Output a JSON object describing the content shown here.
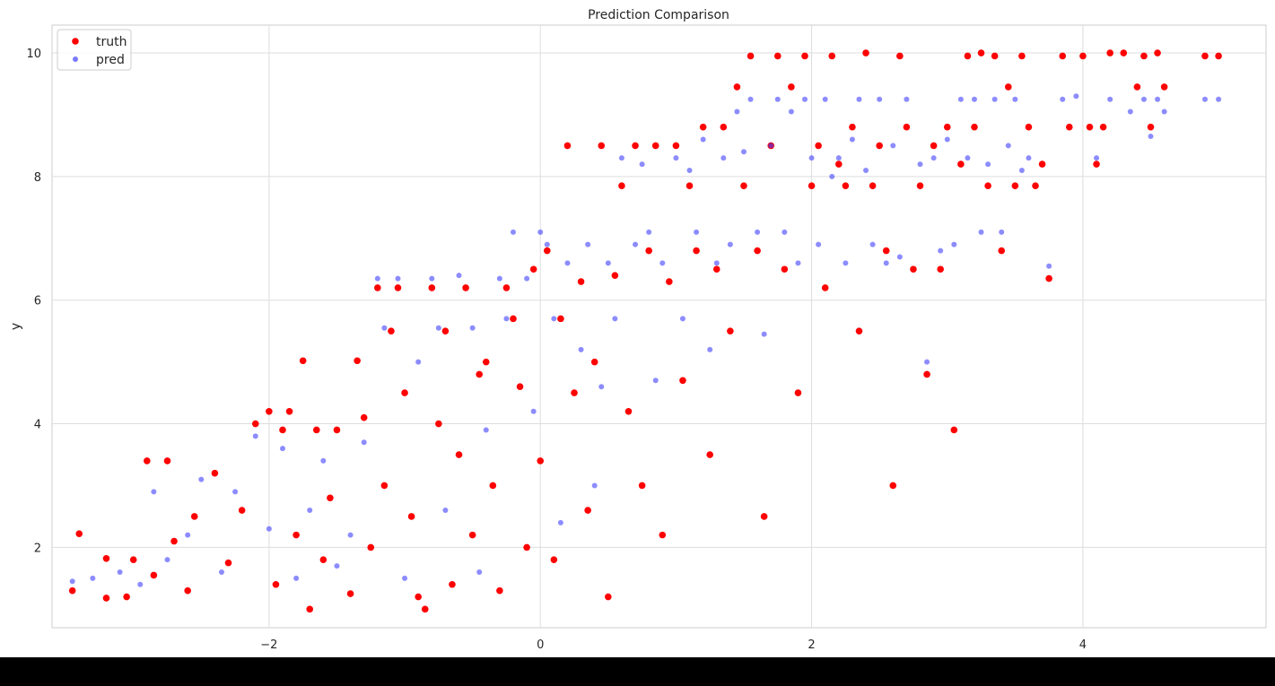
{
  "chart_data": {
    "type": "scatter",
    "title": "Prediction Comparison",
    "xlabel": "",
    "ylabel": "y",
    "xlim": [
      -3.6,
      5.35
    ],
    "ylim": [
      0.7,
      10.45
    ],
    "xticks": [
      -2,
      0,
      2,
      4
    ],
    "xtick_labels": [
      "−2",
      "0",
      "2",
      "4"
    ],
    "yticks": [
      2,
      4,
      6,
      8,
      10
    ],
    "ytick_labels": [
      "2",
      "4",
      "6",
      "8",
      "10"
    ],
    "grid": true,
    "legend_position": "top-left",
    "series": [
      {
        "name": "truth",
        "color": "#ff0000",
        "points": [
          [
            -3.45,
            1.3
          ],
          [
            -3.4,
            2.22
          ],
          [
            -3.2,
            1.82
          ],
          [
            -3.2,
            1.18
          ],
          [
            -3.05,
            1.2
          ],
          [
            -3.0,
            1.8
          ],
          [
            -2.9,
            3.4
          ],
          [
            -2.85,
            1.55
          ],
          [
            -2.75,
            3.4
          ],
          [
            -2.7,
            2.1
          ],
          [
            -2.6,
            1.3
          ],
          [
            -2.55,
            2.5
          ],
          [
            -2.4,
            3.2
          ],
          [
            -2.3,
            1.75
          ],
          [
            -2.2,
            2.6
          ],
          [
            -2.1,
            4.0
          ],
          [
            -2.0,
            4.2
          ],
          [
            -1.95,
            1.4
          ],
          [
            -1.9,
            3.9
          ],
          [
            -1.85,
            4.2
          ],
          [
            -1.8,
            2.2
          ],
          [
            -1.75,
            5.02
          ],
          [
            -1.7,
            1.0
          ],
          [
            -1.65,
            3.9
          ],
          [
            -1.6,
            1.8
          ],
          [
            -1.55,
            2.8
          ],
          [
            -1.5,
            3.9
          ],
          [
            -1.4,
            1.25
          ],
          [
            -1.35,
            5.02
          ],
          [
            -1.3,
            4.1
          ],
          [
            -1.25,
            2.0
          ],
          [
            -1.2,
            6.2
          ],
          [
            -1.15,
            3.0
          ],
          [
            -1.1,
            5.5
          ],
          [
            -1.05,
            6.2
          ],
          [
            -1.0,
            4.5
          ],
          [
            -0.95,
            2.5
          ],
          [
            -0.9,
            1.2
          ],
          [
            -0.85,
            1.0
          ],
          [
            -0.8,
            6.2
          ],
          [
            -0.75,
            4.0
          ],
          [
            -0.7,
            5.5
          ],
          [
            -0.65,
            1.4
          ],
          [
            -0.6,
            3.5
          ],
          [
            -0.55,
            6.2
          ],
          [
            -0.5,
            2.2
          ],
          [
            -0.45,
            4.8
          ],
          [
            -0.4,
            5.0
          ],
          [
            -0.35,
            3.0
          ],
          [
            -0.3,
            1.3
          ],
          [
            -0.25,
            6.2
          ],
          [
            -0.2,
            5.7
          ],
          [
            -0.15,
            4.6
          ],
          [
            -0.1,
            2.0
          ],
          [
            -0.05,
            6.5
          ],
          [
            0.0,
            3.4
          ],
          [
            0.05,
            6.8
          ],
          [
            0.1,
            1.8
          ],
          [
            0.15,
            5.7
          ],
          [
            0.2,
            8.5
          ],
          [
            0.25,
            4.5
          ],
          [
            0.3,
            6.3
          ],
          [
            0.35,
            2.6
          ],
          [
            0.4,
            5.0
          ],
          [
            0.45,
            8.5
          ],
          [
            0.5,
            1.2
          ],
          [
            0.55,
            6.4
          ],
          [
            0.6,
            7.85
          ],
          [
            0.65,
            4.2
          ],
          [
            0.7,
            8.5
          ],
          [
            0.75,
            3.0
          ],
          [
            0.8,
            6.8
          ],
          [
            0.85,
            8.5
          ],
          [
            0.9,
            2.2
          ],
          [
            0.95,
            6.3
          ],
          [
            1.0,
            8.5
          ],
          [
            1.05,
            4.7
          ],
          [
            1.1,
            7.85
          ],
          [
            1.15,
            6.8
          ],
          [
            1.2,
            8.8
          ],
          [
            1.25,
            3.5
          ],
          [
            1.3,
            6.5
          ],
          [
            1.35,
            8.8
          ],
          [
            1.4,
            5.5
          ],
          [
            1.45,
            9.45
          ],
          [
            1.5,
            7.85
          ],
          [
            1.55,
            9.95
          ],
          [
            1.6,
            6.8
          ],
          [
            1.65,
            2.5
          ],
          [
            1.7,
            8.5
          ],
          [
            1.75,
            9.95
          ],
          [
            1.8,
            6.5
          ],
          [
            1.85,
            9.45
          ],
          [
            1.9,
            4.5
          ],
          [
            1.95,
            9.95
          ],
          [
            2.0,
            7.85
          ],
          [
            2.05,
            8.5
          ],
          [
            2.1,
            6.2
          ],
          [
            2.15,
            9.95
          ],
          [
            2.2,
            8.2
          ],
          [
            2.25,
            7.85
          ],
          [
            2.3,
            8.8
          ],
          [
            2.35,
            5.5
          ],
          [
            2.4,
            10.0
          ],
          [
            2.45,
            7.85
          ],
          [
            2.5,
            8.5
          ],
          [
            2.55,
            6.8
          ],
          [
            2.6,
            3.0
          ],
          [
            2.65,
            9.95
          ],
          [
            2.7,
            8.8
          ],
          [
            2.75,
            6.5
          ],
          [
            2.8,
            7.85
          ],
          [
            2.85,
            4.8
          ],
          [
            2.9,
            8.5
          ],
          [
            2.95,
            6.5
          ],
          [
            3.0,
            8.8
          ],
          [
            3.05,
            3.9
          ],
          [
            3.1,
            8.2
          ],
          [
            3.15,
            9.95
          ],
          [
            3.2,
            8.8
          ],
          [
            3.25,
            10.0
          ],
          [
            3.3,
            7.85
          ],
          [
            3.35,
            9.95
          ],
          [
            3.4,
            6.8
          ],
          [
            3.45,
            9.45
          ],
          [
            3.5,
            7.85
          ],
          [
            3.55,
            9.95
          ],
          [
            3.6,
            8.8
          ],
          [
            3.65,
            7.85
          ],
          [
            3.7,
            8.2
          ],
          [
            3.75,
            6.35
          ],
          [
            3.85,
            9.95
          ],
          [
            3.9,
            8.8
          ],
          [
            4.0,
            9.95
          ],
          [
            4.05,
            8.8
          ],
          [
            4.1,
            8.2
          ],
          [
            4.15,
            8.8
          ],
          [
            4.2,
            10.0
          ],
          [
            4.3,
            10.0
          ],
          [
            4.4,
            9.45
          ],
          [
            4.45,
            9.95
          ],
          [
            4.5,
            8.8
          ],
          [
            4.55,
            10.0
          ],
          [
            4.6,
            9.45
          ],
          [
            4.9,
            9.95
          ],
          [
            5.0,
            9.95
          ]
        ]
      },
      {
        "name": "pred",
        "color": "#4040ff",
        "points": [
          [
            -3.45,
            1.45
          ],
          [
            -3.3,
            1.5
          ],
          [
            -3.1,
            1.6
          ],
          [
            -2.95,
            1.4
          ],
          [
            -2.85,
            2.9
          ],
          [
            -2.75,
            1.8
          ],
          [
            -2.6,
            2.2
          ],
          [
            -2.5,
            3.1
          ],
          [
            -2.35,
            1.6
          ],
          [
            -2.25,
            2.9
          ],
          [
            -2.1,
            3.8
          ],
          [
            -2.0,
            2.3
          ],
          [
            -1.9,
            3.6
          ],
          [
            -1.8,
            1.5
          ],
          [
            -1.7,
            2.6
          ],
          [
            -1.6,
            3.4
          ],
          [
            -1.5,
            1.7
          ],
          [
            -1.4,
            2.2
          ],
          [
            -1.3,
            3.7
          ],
          [
            -1.2,
            6.35
          ],
          [
            -1.15,
            5.55
          ],
          [
            -1.05,
            6.35
          ],
          [
            -1.0,
            1.5
          ],
          [
            -0.9,
            5.0
          ],
          [
            -0.8,
            6.35
          ],
          [
            -0.75,
            5.55
          ],
          [
            -0.7,
            2.6
          ],
          [
            -0.6,
            6.4
          ],
          [
            -0.5,
            5.55
          ],
          [
            -0.45,
            1.6
          ],
          [
            -0.4,
            3.9
          ],
          [
            -0.3,
            6.35
          ],
          [
            -0.25,
            5.7
          ],
          [
            -0.2,
            7.1
          ],
          [
            -0.1,
            6.35
          ],
          [
            -0.05,
            4.2
          ],
          [
            0.0,
            7.1
          ],
          [
            0.05,
            6.9
          ],
          [
            0.1,
            5.7
          ],
          [
            0.15,
            2.4
          ],
          [
            0.2,
            6.6
          ],
          [
            0.3,
            5.2
          ],
          [
            0.35,
            6.9
          ],
          [
            0.4,
            3.0
          ],
          [
            0.45,
            4.6
          ],
          [
            0.5,
            6.6
          ],
          [
            0.55,
            5.7
          ],
          [
            0.6,
            8.3
          ],
          [
            0.7,
            6.9
          ],
          [
            0.75,
            8.2
          ],
          [
            0.8,
            7.1
          ],
          [
            0.85,
            4.7
          ],
          [
            0.9,
            6.6
          ],
          [
            1.0,
            8.3
          ],
          [
            1.05,
            5.7
          ],
          [
            1.1,
            8.1
          ],
          [
            1.15,
            7.1
          ],
          [
            1.2,
            8.6
          ],
          [
            1.25,
            5.2
          ],
          [
            1.3,
            6.6
          ],
          [
            1.35,
            8.3
          ],
          [
            1.4,
            6.9
          ],
          [
            1.45,
            9.05
          ],
          [
            1.5,
            8.4
          ],
          [
            1.55,
            9.25
          ],
          [
            1.6,
            7.1
          ],
          [
            1.65,
            5.45
          ],
          [
            1.7,
            8.5
          ],
          [
            1.75,
            9.25
          ],
          [
            1.8,
            7.1
          ],
          [
            1.85,
            9.05
          ],
          [
            1.9,
            6.6
          ],
          [
            1.95,
            9.25
          ],
          [
            2.0,
            8.3
          ],
          [
            2.05,
            6.9
          ],
          [
            2.1,
            9.25
          ],
          [
            2.15,
            8.0
          ],
          [
            2.2,
            8.3
          ],
          [
            2.25,
            6.6
          ],
          [
            2.3,
            8.6
          ],
          [
            2.35,
            9.25
          ],
          [
            2.4,
            8.1
          ],
          [
            2.45,
            6.9
          ],
          [
            2.5,
            9.25
          ],
          [
            2.55,
            6.6
          ],
          [
            2.6,
            8.5
          ],
          [
            2.65,
            6.7
          ],
          [
            2.7,
            9.25
          ],
          [
            2.8,
            8.2
          ],
          [
            2.85,
            5.0
          ],
          [
            2.9,
            8.3
          ],
          [
            2.95,
            6.8
          ],
          [
            3.0,
            8.6
          ],
          [
            3.05,
            6.9
          ],
          [
            3.1,
            9.25
          ],
          [
            3.15,
            8.3
          ],
          [
            3.2,
            9.25
          ],
          [
            3.25,
            7.1
          ],
          [
            3.3,
            8.2
          ],
          [
            3.35,
            9.25
          ],
          [
            3.4,
            7.1
          ],
          [
            3.45,
            8.5
          ],
          [
            3.5,
            9.25
          ],
          [
            3.55,
            8.1
          ],
          [
            3.6,
            8.3
          ],
          [
            3.75,
            6.55
          ],
          [
            3.85,
            9.25
          ],
          [
            3.95,
            9.3
          ],
          [
            4.1,
            8.3
          ],
          [
            4.2,
            9.25
          ],
          [
            4.35,
            9.05
          ],
          [
            4.45,
            9.25
          ],
          [
            4.5,
            8.65
          ],
          [
            4.55,
            9.25
          ],
          [
            4.6,
            9.05
          ],
          [
            4.9,
            9.25
          ],
          [
            5.0,
            9.25
          ]
        ]
      }
    ]
  }
}
